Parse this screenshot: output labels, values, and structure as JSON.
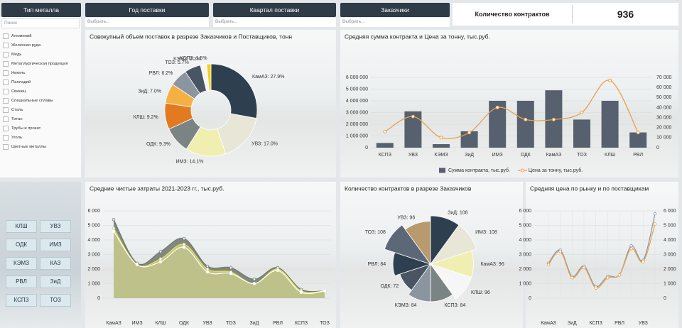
{
  "filters": [
    {
      "title": "Тип металла",
      "search": "Поиск",
      "options": [
        "Алюминий",
        "Железная руда",
        "Медь",
        "Металлургическая продукция",
        "Никель",
        "Палладий",
        "Свинец",
        "Специальные сплавы",
        "Сталь",
        "Титан",
        "Трубы и прокат",
        "Уголь",
        "Цветные металлы"
      ]
    },
    {
      "title": "Год поставки",
      "placeholder": "Выбрать..."
    },
    {
      "title": "Квартал поставки",
      "placeholder": "Выбрать..."
    },
    {
      "title": "Заказчики",
      "placeholder": "Выбрать..."
    }
  ],
  "kpi": {
    "label": "Количество контрактов",
    "value": 936
  },
  "customer_buttons": [
    "КЛШ",
    "УВЗ",
    "ОДК",
    "ИМЗ",
    "КЭМЗ",
    "КАЗ",
    "РВЛ",
    "ЗиД",
    "КСПЗ",
    "ТОЗ"
  ],
  "chart_data": [
    {
      "type": "donut",
      "title": "Совокупный объем поставок в разрезе Заказчиков и Поставщиков, тонн",
      "categories": [
        "КамАЗ",
        "УВЗ",
        "ИМЗ",
        "ОДК",
        "КЛШ",
        "ЗиД",
        "РВЛ",
        "ТОЗ",
        "КЭМЗ",
        "КСПЗ"
      ],
      "values": [
        27.9,
        17.0,
        14.1,
        9.3,
        9.2,
        7.0,
        6.2,
        5.7,
        2.2,
        1.5
      ],
      "value_labels": [
        "КамАЗ: 27.9%",
        "УВЗ: 17.0%",
        "ИМЗ: 14.1%",
        "ОДК: 9.3%",
        "КЛШ: 9.2%",
        "ЗиД: 7.0%",
        "РВЛ: 6.2%",
        "ТОЗ: 5.7%",
        "КЭМЗ: 2.2%",
        "КСПЗ: 1.5%"
      ],
      "colors": [
        "#2e3f4f",
        "#e8e6d6",
        "#f1eeb2",
        "#7b8485",
        "#e27a1f",
        "#f4b042",
        "#8a95a0",
        "#495563",
        "#f6f6f6",
        "#f2d21b"
      ]
    },
    {
      "type": "combo",
      "title": "Средняя сумма контракта и Цена за тонну, тыс.руб.",
      "categories": [
        "КСПЗ",
        "УВЗ",
        "КЭМЗ",
        "ЗиД",
        "ИМЗ",
        "ОДК",
        "КамАЗ",
        "ТОЗ",
        "КЛШ",
        "РВЛ"
      ],
      "series": [
        {
          "name": "Сумма контракта, тыс.руб.",
          "color": "#56606e",
          "kind": "bar",
          "values": [
            400000,
            3100000,
            300000,
            1400000,
            4000000,
            4000000,
            4900000,
            2400000,
            4000000,
            1300000
          ]
        },
        {
          "name": "Цена за тонну, тыс.руб.",
          "color": "#e8a04a",
          "kind": "line",
          "axis": "y2",
          "values": [
            16000,
            31000,
            10000,
            15000,
            40000,
            28000,
            28000,
            35000,
            67000,
            15000
          ]
        }
      ],
      "ylim": [
        0,
        6000000
      ],
      "yticks": [
        0,
        {
          "value": 1000000,
          "label": "1 000 000"
        },
        {
          "value": 2000000,
          "label": "2 000 000"
        },
        {
          "value": 3000000,
          "label": "3 000 000"
        },
        {
          "value": 4000000,
          "label": "4 000 000"
        },
        {
          "value": 5000000,
          "label": "5 000 000"
        },
        {
          "value": 6000000,
          "label": "6 000 000"
        }
      ],
      "y2lim": [
        0,
        70000
      ],
      "y2ticks": [
        0,
        {
          "value": 10000,
          "label": "10 000"
        },
        {
          "value": 20000,
          "label": "20 000"
        },
        {
          "value": 30000,
          "label": "30 000"
        },
        {
          "value": 40000,
          "label": "40 000"
        },
        {
          "value": 50000,
          "label": "50 000"
        },
        {
          "value": 60000,
          "label": "60 000"
        },
        {
          "value": 70000,
          "label": "70 000"
        }
      ],
      "legend": "bottom"
    },
    {
      "type": "area",
      "title": "Средние чистые затраты 2021-2023 гг., тыс.руб.",
      "categories": [
        "КамАЗ",
        "ИМЗ",
        "КЛШ",
        "ОДК",
        "УВЗ",
        "ТОЗ",
        "ЗиД",
        "РВЛ",
        "КСПЗ",
        "ТОЗ"
      ],
      "series": [
        {
          "color": "#6f776d",
          "fill": true,
          "values": [
            5400,
            2400,
            3200,
            4100,
            2200,
            2100,
            1300,
            2100,
            600,
            500
          ]
        },
        {
          "color": "#c9cd8c",
          "fill": true,
          "values": [
            4800,
            2300,
            2700,
            3700,
            2000,
            1800,
            1000,
            2000,
            500,
            500
          ]
        },
        {
          "color": "#ffffff",
          "fill": false,
          "values": [
            4600,
            2300,
            2500,
            3500,
            1800,
            1700,
            1000,
            1900,
            400,
            500
          ]
        }
      ],
      "ylim": [
        0,
        6000
      ],
      "yticks": [
        0,
        {
          "value": 1000,
          "label": "1 000"
        },
        {
          "value": 2000,
          "label": "2 000"
        },
        {
          "value": 3000,
          "label": "3 000"
        },
        {
          "value": 4000,
          "label": "4 000"
        },
        {
          "value": 5000,
          "label": "5 000"
        },
        {
          "value": 6000,
          "label": "6 000"
        }
      ]
    },
    {
      "type": "polar",
      "title": "Количество контрактов в разрезе Заказчиков",
      "categories": [
        "ЗиД",
        "ИМЗ",
        "КамАЗ",
        "КЛШ",
        "КСПЗ",
        "КЭМЗ",
        "ОДК",
        "РВЛ",
        "ТОЗ",
        "УВЗ"
      ],
      "values": [
        108,
        108,
        96,
        96,
        84,
        84,
        72,
        84,
        108,
        96
      ],
      "value_labels": [
        "ЗиД: 108",
        "ИМЗ: 108",
        "КамАЗ: 96",
        "КЛШ: 96",
        "КСПЗ: 84",
        "КЭМЗ: 84",
        "ОДК: 72",
        "РВЛ: 84",
        "ТОЗ: 108",
        "УВЗ: 96"
      ],
      "colors": [
        "#2e3f4f",
        "#e8e6d6",
        "#f1eeb2",
        "#f6f6f6",
        "#7b8485",
        "#8a95a0",
        "#495563",
        "#2e3f4f",
        "#5c6878",
        "#b89a6e"
      ]
    },
    {
      "type": "line",
      "title": "Средняя цена по рынку и по поставщикам",
      "categories": [
        "КамАЗ",
        null,
        "ЗиД",
        null,
        "КСПЗ",
        null,
        "РВЛ",
        null,
        "УВЗ",
        null
      ],
      "series": [
        {
          "color": "#8a95a0",
          "values": [
            2400,
            3300,
            1500,
            2200,
            800,
            1500,
            1600,
            3600,
            2600,
            5800
          ]
        },
        {
          "color": "#e8a04a",
          "axis": "y2",
          "values": [
            2300,
            3200,
            1400,
            2100,
            700,
            1400,
            1600,
            3400,
            2500,
            5100
          ]
        }
      ],
      "ylim": [
        0,
        6000
      ],
      "yticks": [
        0,
        {
          "value": 1000,
          "label": "1 000"
        },
        {
          "value": 2000,
          "label": "2 000"
        },
        {
          "value": 3000,
          "label": "3 000"
        },
        {
          "value": 4000,
          "label": "4 000"
        },
        {
          "value": 5000,
          "label": "5 000"
        },
        {
          "value": 6000,
          "label": "6 000"
        }
      ],
      "y2lim": [
        0,
        6000
      ],
      "y2ticks": [
        0,
        {
          "value": 1000,
          "label": "1 000"
        },
        {
          "value": 2000,
          "label": "2 000"
        },
        {
          "value": 3000,
          "label": "3 000"
        },
        {
          "value": 4000,
          "label": "4 000"
        },
        {
          "value": 5000,
          "label": "5 000"
        },
        {
          "value": 6000,
          "label": "6 000"
        }
      ]
    }
  ]
}
